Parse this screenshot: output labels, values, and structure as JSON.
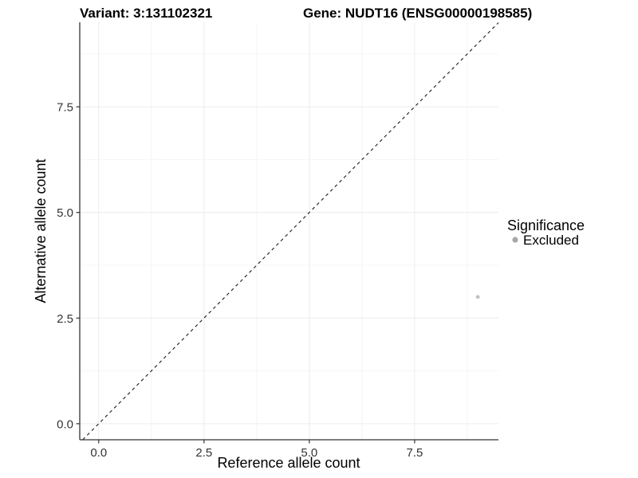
{
  "chart_data": {
    "type": "scatter",
    "title_left": "Variant: 3:131102321",
    "title_right": "Gene: NUDT16 (ENSG00000198585)",
    "xlabel": "Reference allele count",
    "ylabel": "Alternative allele count",
    "x_ticks": [
      0,
      2.5,
      5,
      7.5
    ],
    "x_tick_labels": [
      "0.0",
      "2.5",
      "5.0",
      "7.5"
    ],
    "y_ticks": [
      0,
      2.5,
      5,
      7.5
    ],
    "y_tick_labels": [
      "0.0",
      "2.5",
      "5.0",
      "7.5"
    ],
    "x_minor_ticks": [
      1.25,
      3.75,
      6.25,
      8.75
    ],
    "y_minor_ticks": [
      1.25,
      3.75,
      6.25,
      8.75
    ],
    "xlim": [
      -0.45,
      9.49
    ],
    "ylim": [
      -0.38,
      9.5
    ],
    "grid": "major+minor",
    "legend_position": "right",
    "reference_line": {
      "kind": "identity y=x",
      "style": "dashed",
      "color": "#1a1a1a"
    },
    "series": [
      {
        "name": "Excluded",
        "color": "#c0c0c0",
        "points": [
          {
            "x": 9,
            "y": 3
          }
        ]
      }
    ],
    "legend": {
      "title": "Significance",
      "items": [
        {
          "label": "Excluded",
          "color": "#a8a8a8"
        }
      ]
    },
    "colors": {
      "background": "#ffffff",
      "grid_major": "#ececec",
      "grid_minor": "#f5f5f5",
      "axis_line": "#333333",
      "tick_label": "#333333",
      "title": "#000000"
    }
  }
}
